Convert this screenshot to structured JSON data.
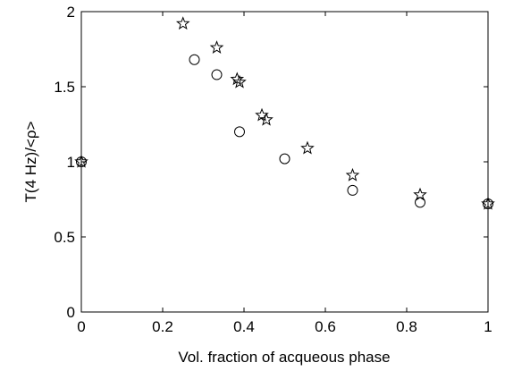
{
  "chart_data": {
    "type": "scatter",
    "xlabel": "Vol. fraction of acqueous phase",
    "ylabel": "T(4 Hz)/<ρ>",
    "xlim": [
      0,
      1
    ],
    "ylim": [
      0,
      2
    ],
    "xticks": [
      0,
      0.2,
      0.4,
      0.6,
      0.8,
      1
    ],
    "xtick_labels": [
      "0",
      "0.2",
      "0.4",
      "0.6",
      "0.8",
      "1"
    ],
    "yticks": [
      0,
      0.5,
      1,
      1.5,
      2
    ],
    "ytick_labels": [
      "0",
      "0.5",
      "1",
      "1.5",
      "2"
    ],
    "grid": false,
    "box": true,
    "series": [
      {
        "marker": "circle",
        "color": "#000000",
        "x": [
          0,
          0.278,
          0.333,
          0.389,
          0.5,
          0.667,
          0.833,
          1.0
        ],
        "y": [
          1.0,
          1.68,
          1.58,
          1.2,
          1.02,
          0.81,
          0.73,
          0.72
        ]
      },
      {
        "marker": "star",
        "color": "#000000",
        "x": [
          0,
          0.25,
          0.333,
          0.383,
          0.389,
          0.444,
          0.455,
          0.556,
          0.667,
          0.833,
          1.0
        ],
        "y": [
          1.0,
          1.92,
          1.76,
          1.55,
          1.53,
          1.31,
          1.28,
          1.09,
          0.91,
          0.78,
          0.72
        ]
      }
    ]
  }
}
